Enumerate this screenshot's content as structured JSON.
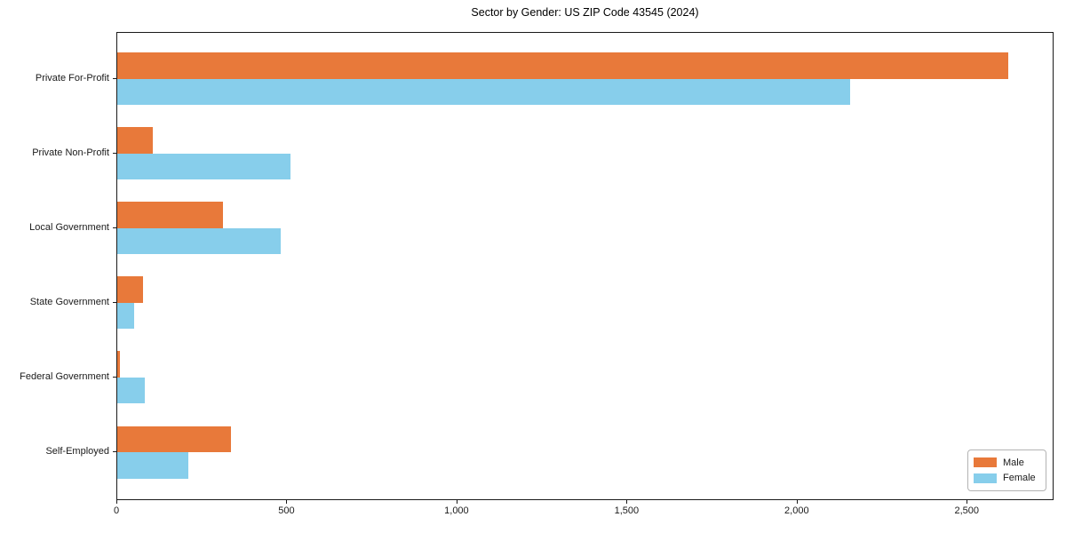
{
  "chart_data": {
    "type": "bar",
    "orientation": "horizontal",
    "title": "Sector by Gender: US ZIP Code 43545 (2024)",
    "xlabel": "",
    "ylabel": "",
    "categories": [
      "Private For-Profit",
      "Private Non-Profit",
      "Local Government",
      "State Government",
      "Federal Government",
      "Self-Employed"
    ],
    "series": [
      {
        "name": "Male",
        "color": "#E8793A",
        "values": [
          2620,
          105,
          310,
          75,
          8,
          335
        ]
      },
      {
        "name": "Female",
        "color": "#87CEEB",
        "values": [
          2155,
          510,
          480,
          50,
          80,
          210
        ]
      }
    ],
    "xlim": [
      0,
      2750
    ],
    "xticks": [
      0,
      500,
      1000,
      1500,
      2000,
      2500
    ],
    "xtick_labels": [
      "0",
      "500",
      "1,000",
      "1,500",
      "2,000",
      "2,500"
    ],
    "grid": false,
    "legend_position": "lower right"
  },
  "legend": {
    "items": [
      {
        "label": "Male",
        "color": "#E8793A"
      },
      {
        "label": "Female",
        "color": "#87CEEB"
      }
    ]
  }
}
